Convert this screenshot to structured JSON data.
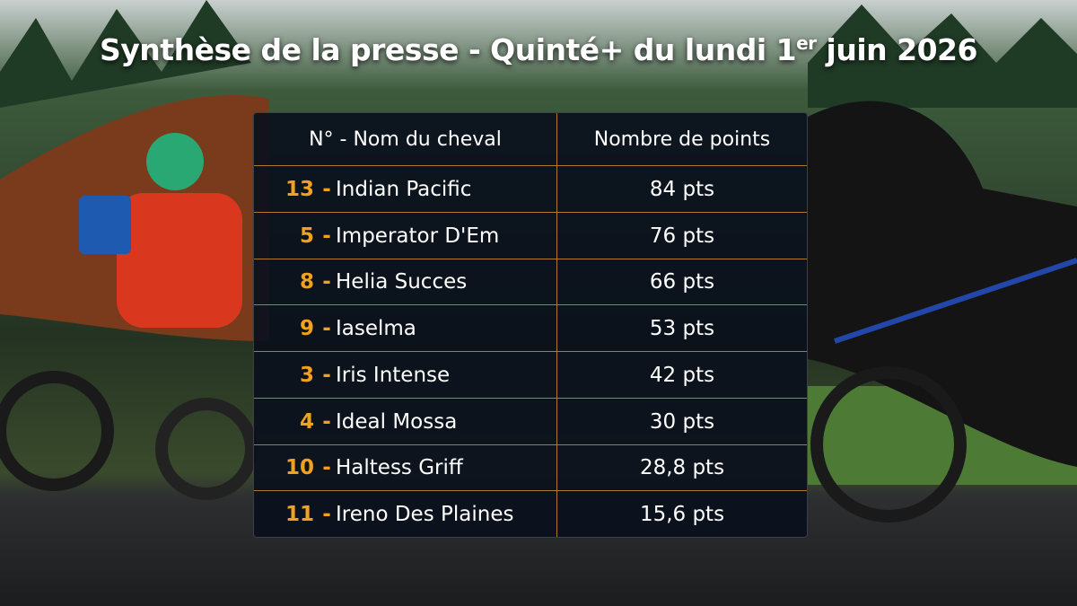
{
  "title": {
    "parts": [
      "Synthèse de la presse - Quinté+ du lundi 1",
      "er",
      "juin 2026"
    ]
  },
  "table": {
    "headers": [
      "N° - Nom du cheval",
      "Nombre de points"
    ],
    "separator": "-",
    "rows": [
      {
        "number": "13",
        "name": "Indian Pacific",
        "points": "84 pts"
      },
      {
        "number": "5",
        "name": "Imperator D'Em",
        "points": "76 pts"
      },
      {
        "number": "8",
        "name": "Helia Succes",
        "points": "66 pts"
      },
      {
        "number": "9",
        "name": "Iaselma",
        "points": "53 pts"
      },
      {
        "number": "3",
        "name": "Iris Intense",
        "points": "42 pts"
      },
      {
        "number": "4",
        "name": "Ideal Mossa",
        "points": "30 pts"
      },
      {
        "number": "10",
        "name": "Haltess Griff",
        "points": "28,8 pts"
      },
      {
        "number": "11",
        "name": "Ireno Des Plaines",
        "points": "15,6 pts"
      }
    ]
  }
}
